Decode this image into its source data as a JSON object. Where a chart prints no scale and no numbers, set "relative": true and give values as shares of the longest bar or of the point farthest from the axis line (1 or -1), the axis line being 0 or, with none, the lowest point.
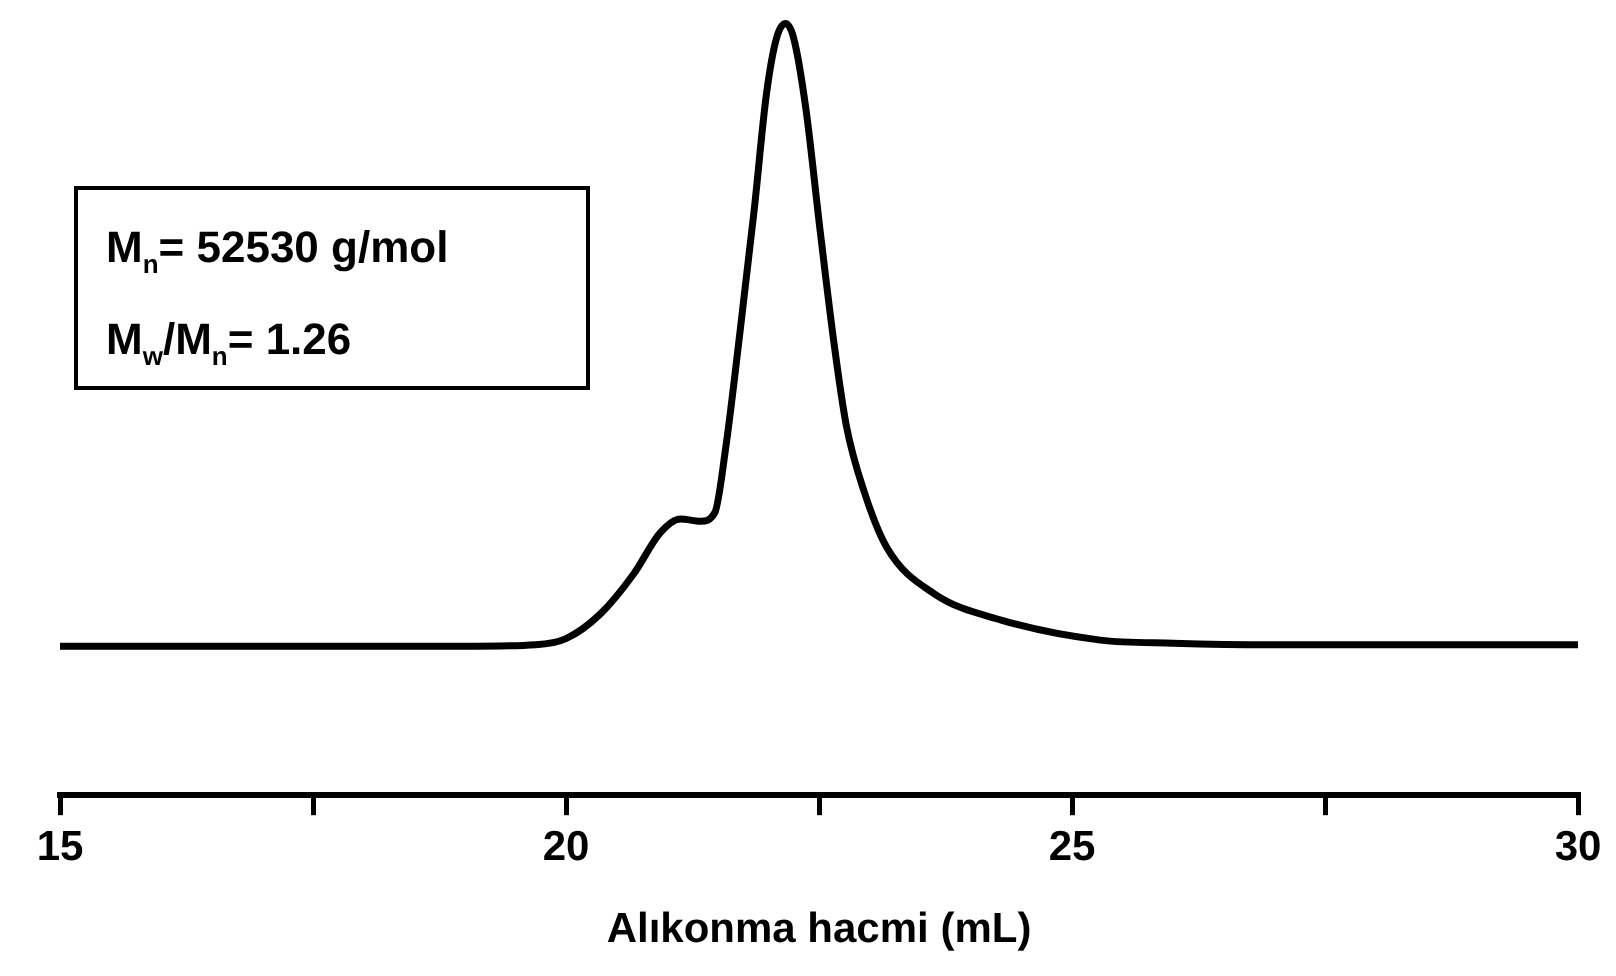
{
  "chart_data": {
    "type": "line",
    "xlabel": "Alıkonma hacmi (mL)",
    "relative": true,
    "annotations": [
      "M$_{n}$= 52530 g/mol",
      "M$_{w}$/M$_{n}$= 1.26"
    ],
    "xlim": [
      15,
      30
    ],
    "xticks": [
      15,
      {
        "value": 17.5,
        "label": null
      },
      20,
      {
        "value": 22.5,
        "label": null
      },
      25,
      {
        "value": 27.5,
        "label": null
      },
      30
    ],
    "grid": false,
    "legend": false,
    "marker": "none",
    "line_style": "solid",
    "series": [
      {
        "color": "#000000",
        "x": [
          15,
          19,
          19.7,
          20,
          20.34,
          20.67,
          20.93,
          21.13,
          21.33,
          21.47,
          21.58,
          21.72,
          21.86,
          21.98,
          22.08,
          22.17,
          22.25,
          22.37,
          22.51,
          22.65,
          22.77,
          22.95,
          23.17,
          23.64,
          24.3,
          25.28,
          26,
          27,
          30
        ],
        "values": [
          0.193,
          0.193,
          0.195,
          0.203,
          0.235,
          0.287,
          0.34,
          0.358,
          0.355,
          0.366,
          0.452,
          0.601,
          0.759,
          0.908,
          0.981,
          1,
          0.981,
          0.89,
          0.733,
          0.584,
          0.479,
          0.392,
          0.321,
          0.261,
          0.227,
          0.201,
          0.197,
          0.195,
          0.195
        ]
      }
    ]
  }
}
